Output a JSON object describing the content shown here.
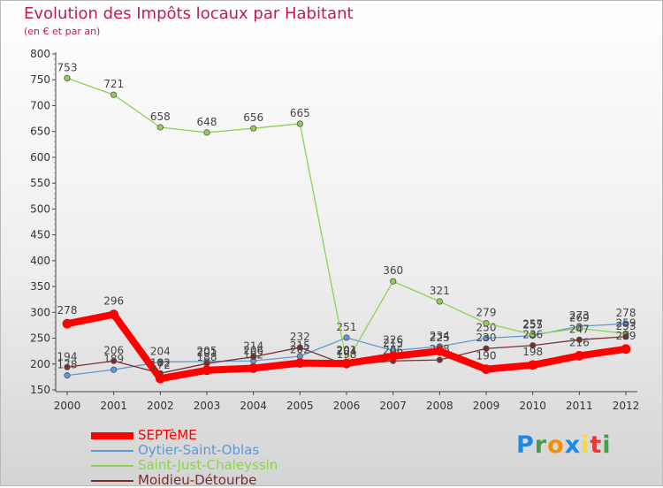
{
  "title": "Evolution des Impôts locaux par Habitant",
  "subtitle": "(en € et par an)",
  "logo": {
    "letters": [
      "P",
      "r",
      "o",
      "x",
      "i",
      "t",
      "i"
    ],
    "colors": [
      "#1e88e5",
      "#43a047",
      "#fb8c00",
      "#1e88e5",
      "#fdd835",
      "#e53935",
      "#43a047"
    ]
  },
  "chart_data": {
    "type": "line",
    "x": [
      "2000",
      "2001",
      "2002",
      "2003",
      "2004",
      "2005",
      "2006",
      "2007",
      "2008",
      "2009",
      "2010",
      "2011",
      "2012"
    ],
    "ylim": [
      150,
      800
    ],
    "yticks": [
      150,
      200,
      250,
      300,
      350,
      400,
      450,
      500,
      550,
      600,
      650,
      700,
      750,
      800
    ],
    "grid": false,
    "legend_position": "bottom-left",
    "series": [
      {
        "name": "SEPTèME",
        "color": "#ff0000",
        "width": 8,
        "values": [
          278,
          296,
          172,
          188,
          192,
          202,
          201,
          215,
          225,
          190,
          198,
          216,
          229
        ],
        "labels": [
          "278",
          "296",
          "172",
          "188",
          "192",
          "202",
          "201",
          "215",
          "225",
          "190",
          "198",
          "216",
          "229"
        ]
      },
      {
        "name": "Oytier-Saint-Oblas",
        "color": "#5b9bd5",
        "width": 1.3,
        "values": [
          178,
          189,
          204,
          205,
          206,
          215,
          251,
          226,
          234,
          250,
          255,
          273,
          278
        ],
        "labels": [
          "178",
          "189",
          "204",
          "205",
          "206",
          "215",
          "251",
          "226",
          "234",
          "250",
          "255",
          "273",
          "278"
        ]
      },
      {
        "name": "Saint-Just-Chaleyssin",
        "color": "#8fd14f",
        "width": 1.3,
        "values": [
          753,
          721,
          658,
          648,
          656,
          665,
          204,
          360,
          321,
          279,
          257,
          269,
          259
        ],
        "labels": [
          "753",
          "721",
          "658",
          "648",
          "656",
          "665",
          "204",
          "360",
          "321",
          "279",
          "257",
          "269",
          "259"
        ]
      },
      {
        "name": "Moidieu-Détourbe",
        "color": "#7b2d2d",
        "width": 1.3,
        "values": [
          194,
          206,
          182,
          201,
          214,
          232,
          198,
          206,
          208,
          230,
          236,
          247,
          253
        ],
        "labels": [
          "194",
          "206",
          "182",
          "201",
          "214",
          "232",
          "198",
          "206",
          "208",
          "230",
          "236",
          "247",
          "253"
        ]
      }
    ]
  }
}
